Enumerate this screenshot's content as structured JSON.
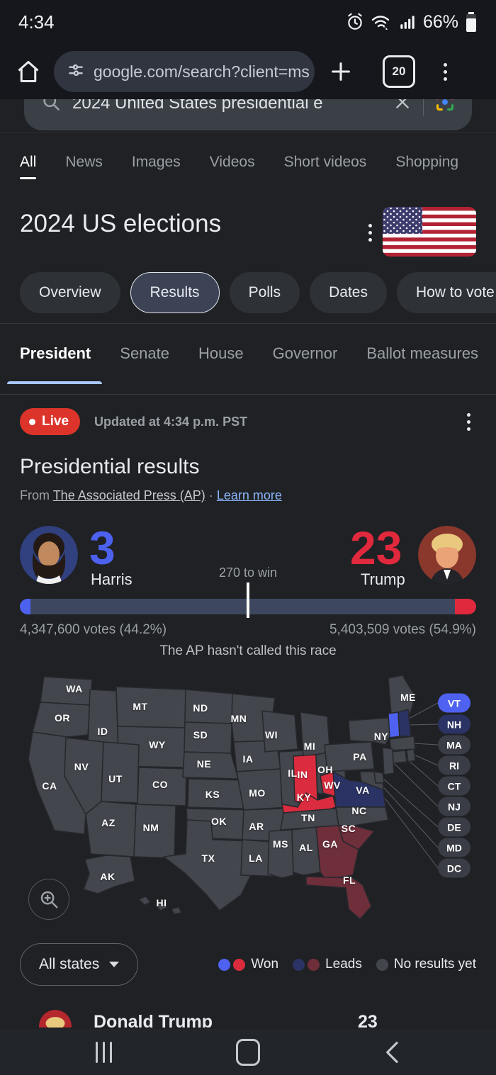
{
  "theme": {
    "dem_won": "#4e61f0",
    "dem_leads": "#2b3364",
    "rep_won": "#da2c3e",
    "rep_leads": "#6e2e3a",
    "no_results": "#43464d",
    "live_red": "#dc342b",
    "link_blue": "#8ab4f8",
    "harris_blue": "#4c61ee",
    "trump_red": "#e0293d",
    "bar_track": "#3d4860"
  },
  "status_bar": {
    "time": "4:34",
    "battery_percent": "66%"
  },
  "browser": {
    "url": "google.com/search?client=ms",
    "tab_count": "20"
  },
  "search_box": {
    "query": "2024 United States presidential e"
  },
  "search_tabs": [
    {
      "label": "All",
      "active": true
    },
    {
      "label": "News"
    },
    {
      "label": "Images"
    },
    {
      "label": "Videos"
    },
    {
      "label": "Short videos"
    },
    {
      "label": "Shopping"
    }
  ],
  "panel": {
    "title": "2024 US elections"
  },
  "chips": [
    {
      "label": "Overview"
    },
    {
      "label": "Results",
      "selected": true
    },
    {
      "label": "Polls"
    },
    {
      "label": "Dates"
    },
    {
      "label": "How to vote"
    }
  ],
  "race_tabs": [
    {
      "label": "President",
      "selected": true
    },
    {
      "label": "Senate"
    },
    {
      "label": "House"
    },
    {
      "label": "Governor"
    },
    {
      "label": "Ballot measures"
    }
  ],
  "live": {
    "badge": "Live",
    "updated": "Updated at 4:34 p.m. PST"
  },
  "results": {
    "heading": "Presidential results",
    "source_prefix": "From",
    "source_name": "The Associated Press (AP)",
    "dot_separator": "·",
    "learn_more": "Learn more",
    "threshold_label": "270 to win",
    "note": "The AP hasn't called this race",
    "harris": {
      "name": "Harris",
      "electoral_votes": "3",
      "votes_label": "4,347,600 votes (44.2%)"
    },
    "trump": {
      "name": "Trump",
      "electoral_votes": "23",
      "votes_label": "5,403,509 votes (54.9%)"
    }
  },
  "map": {
    "states": [
      {
        "abbr": "WA",
        "status": "no_results"
      },
      {
        "abbr": "OR",
        "status": "no_results"
      },
      {
        "abbr": "CA",
        "status": "no_results"
      },
      {
        "abbr": "ID",
        "status": "no_results"
      },
      {
        "abbr": "NV",
        "status": "no_results"
      },
      {
        "abbr": "MT",
        "status": "no_results"
      },
      {
        "abbr": "WY",
        "status": "no_results"
      },
      {
        "abbr": "UT",
        "status": "no_results"
      },
      {
        "abbr": "CO",
        "status": "no_results"
      },
      {
        "abbr": "AZ",
        "status": "no_results"
      },
      {
        "abbr": "NM",
        "status": "no_results"
      },
      {
        "abbr": "ND",
        "status": "no_results"
      },
      {
        "abbr": "SD",
        "status": "no_results"
      },
      {
        "abbr": "NE",
        "status": "no_results"
      },
      {
        "abbr": "KS",
        "status": "no_results"
      },
      {
        "abbr": "OK",
        "status": "no_results"
      },
      {
        "abbr": "TX",
        "status": "no_results"
      },
      {
        "abbr": "MN",
        "status": "no_results"
      },
      {
        "abbr": "IA",
        "status": "no_results"
      },
      {
        "abbr": "MO",
        "status": "no_results"
      },
      {
        "abbr": "AR",
        "status": "no_results"
      },
      {
        "abbr": "LA",
        "status": "no_results"
      },
      {
        "abbr": "WI",
        "status": "no_results"
      },
      {
        "abbr": "IL",
        "status": "no_results"
      },
      {
        "abbr": "MS",
        "status": "no_results"
      },
      {
        "abbr": "MI",
        "status": "no_results"
      },
      {
        "abbr": "IN",
        "status": "rep_won"
      },
      {
        "abbr": "OH",
        "status": "no_results"
      },
      {
        "abbr": "KY",
        "status": "rep_won"
      },
      {
        "abbr": "TN",
        "status": "no_results"
      },
      {
        "abbr": "AL",
        "status": "no_results"
      },
      {
        "abbr": "WV",
        "status": "rep_won"
      },
      {
        "abbr": "VA",
        "status": "dem_leads"
      },
      {
        "abbr": "NC",
        "status": "no_results"
      },
      {
        "abbr": "SC",
        "status": "rep_leads"
      },
      {
        "abbr": "GA",
        "status": "rep_leads"
      },
      {
        "abbr": "FL",
        "status": "rep_leads"
      },
      {
        "abbr": "PA",
        "status": "no_results"
      },
      {
        "abbr": "NY",
        "status": "no_results"
      },
      {
        "abbr": "ME",
        "status": "no_results"
      },
      {
        "abbr": "VT",
        "status": "dem_won"
      },
      {
        "abbr": "NH",
        "status": "dem_leads"
      },
      {
        "abbr": "MA",
        "status": "no_results"
      },
      {
        "abbr": "RI",
        "status": "no_results"
      },
      {
        "abbr": "CT",
        "status": "no_results"
      },
      {
        "abbr": "NJ",
        "status": "no_results"
      },
      {
        "abbr": "DE",
        "status": "no_results"
      },
      {
        "abbr": "MD",
        "status": "no_results"
      },
      {
        "abbr": "AK",
        "status": "no_results"
      },
      {
        "abbr": "HI",
        "status": "no_results"
      }
    ],
    "pills": [
      {
        "abbr": "VT",
        "status": "dem_won"
      },
      {
        "abbr": "NH",
        "status": "dem_leads"
      },
      {
        "abbr": "MA",
        "status": "no_results"
      },
      {
        "abbr": "RI",
        "status": "no_results"
      },
      {
        "abbr": "CT",
        "status": "no_results"
      },
      {
        "abbr": "NJ",
        "status": "no_results"
      },
      {
        "abbr": "DE",
        "status": "no_results"
      },
      {
        "abbr": "MD",
        "status": "no_results"
      },
      {
        "abbr": "DC",
        "status": "no_results"
      }
    ],
    "all_states_label": "All states",
    "legend": [
      {
        "label": "Won",
        "swatches": [
          "dem_won",
          "rep_won"
        ]
      },
      {
        "label": "Leads",
        "swatches": [
          "dem_leads",
          "rep_leads"
        ]
      },
      {
        "label": "No results yet",
        "swatches": [
          "no_results"
        ]
      }
    ]
  },
  "next_row": {
    "name": "Donald Trump",
    "electoral_votes": "23"
  }
}
